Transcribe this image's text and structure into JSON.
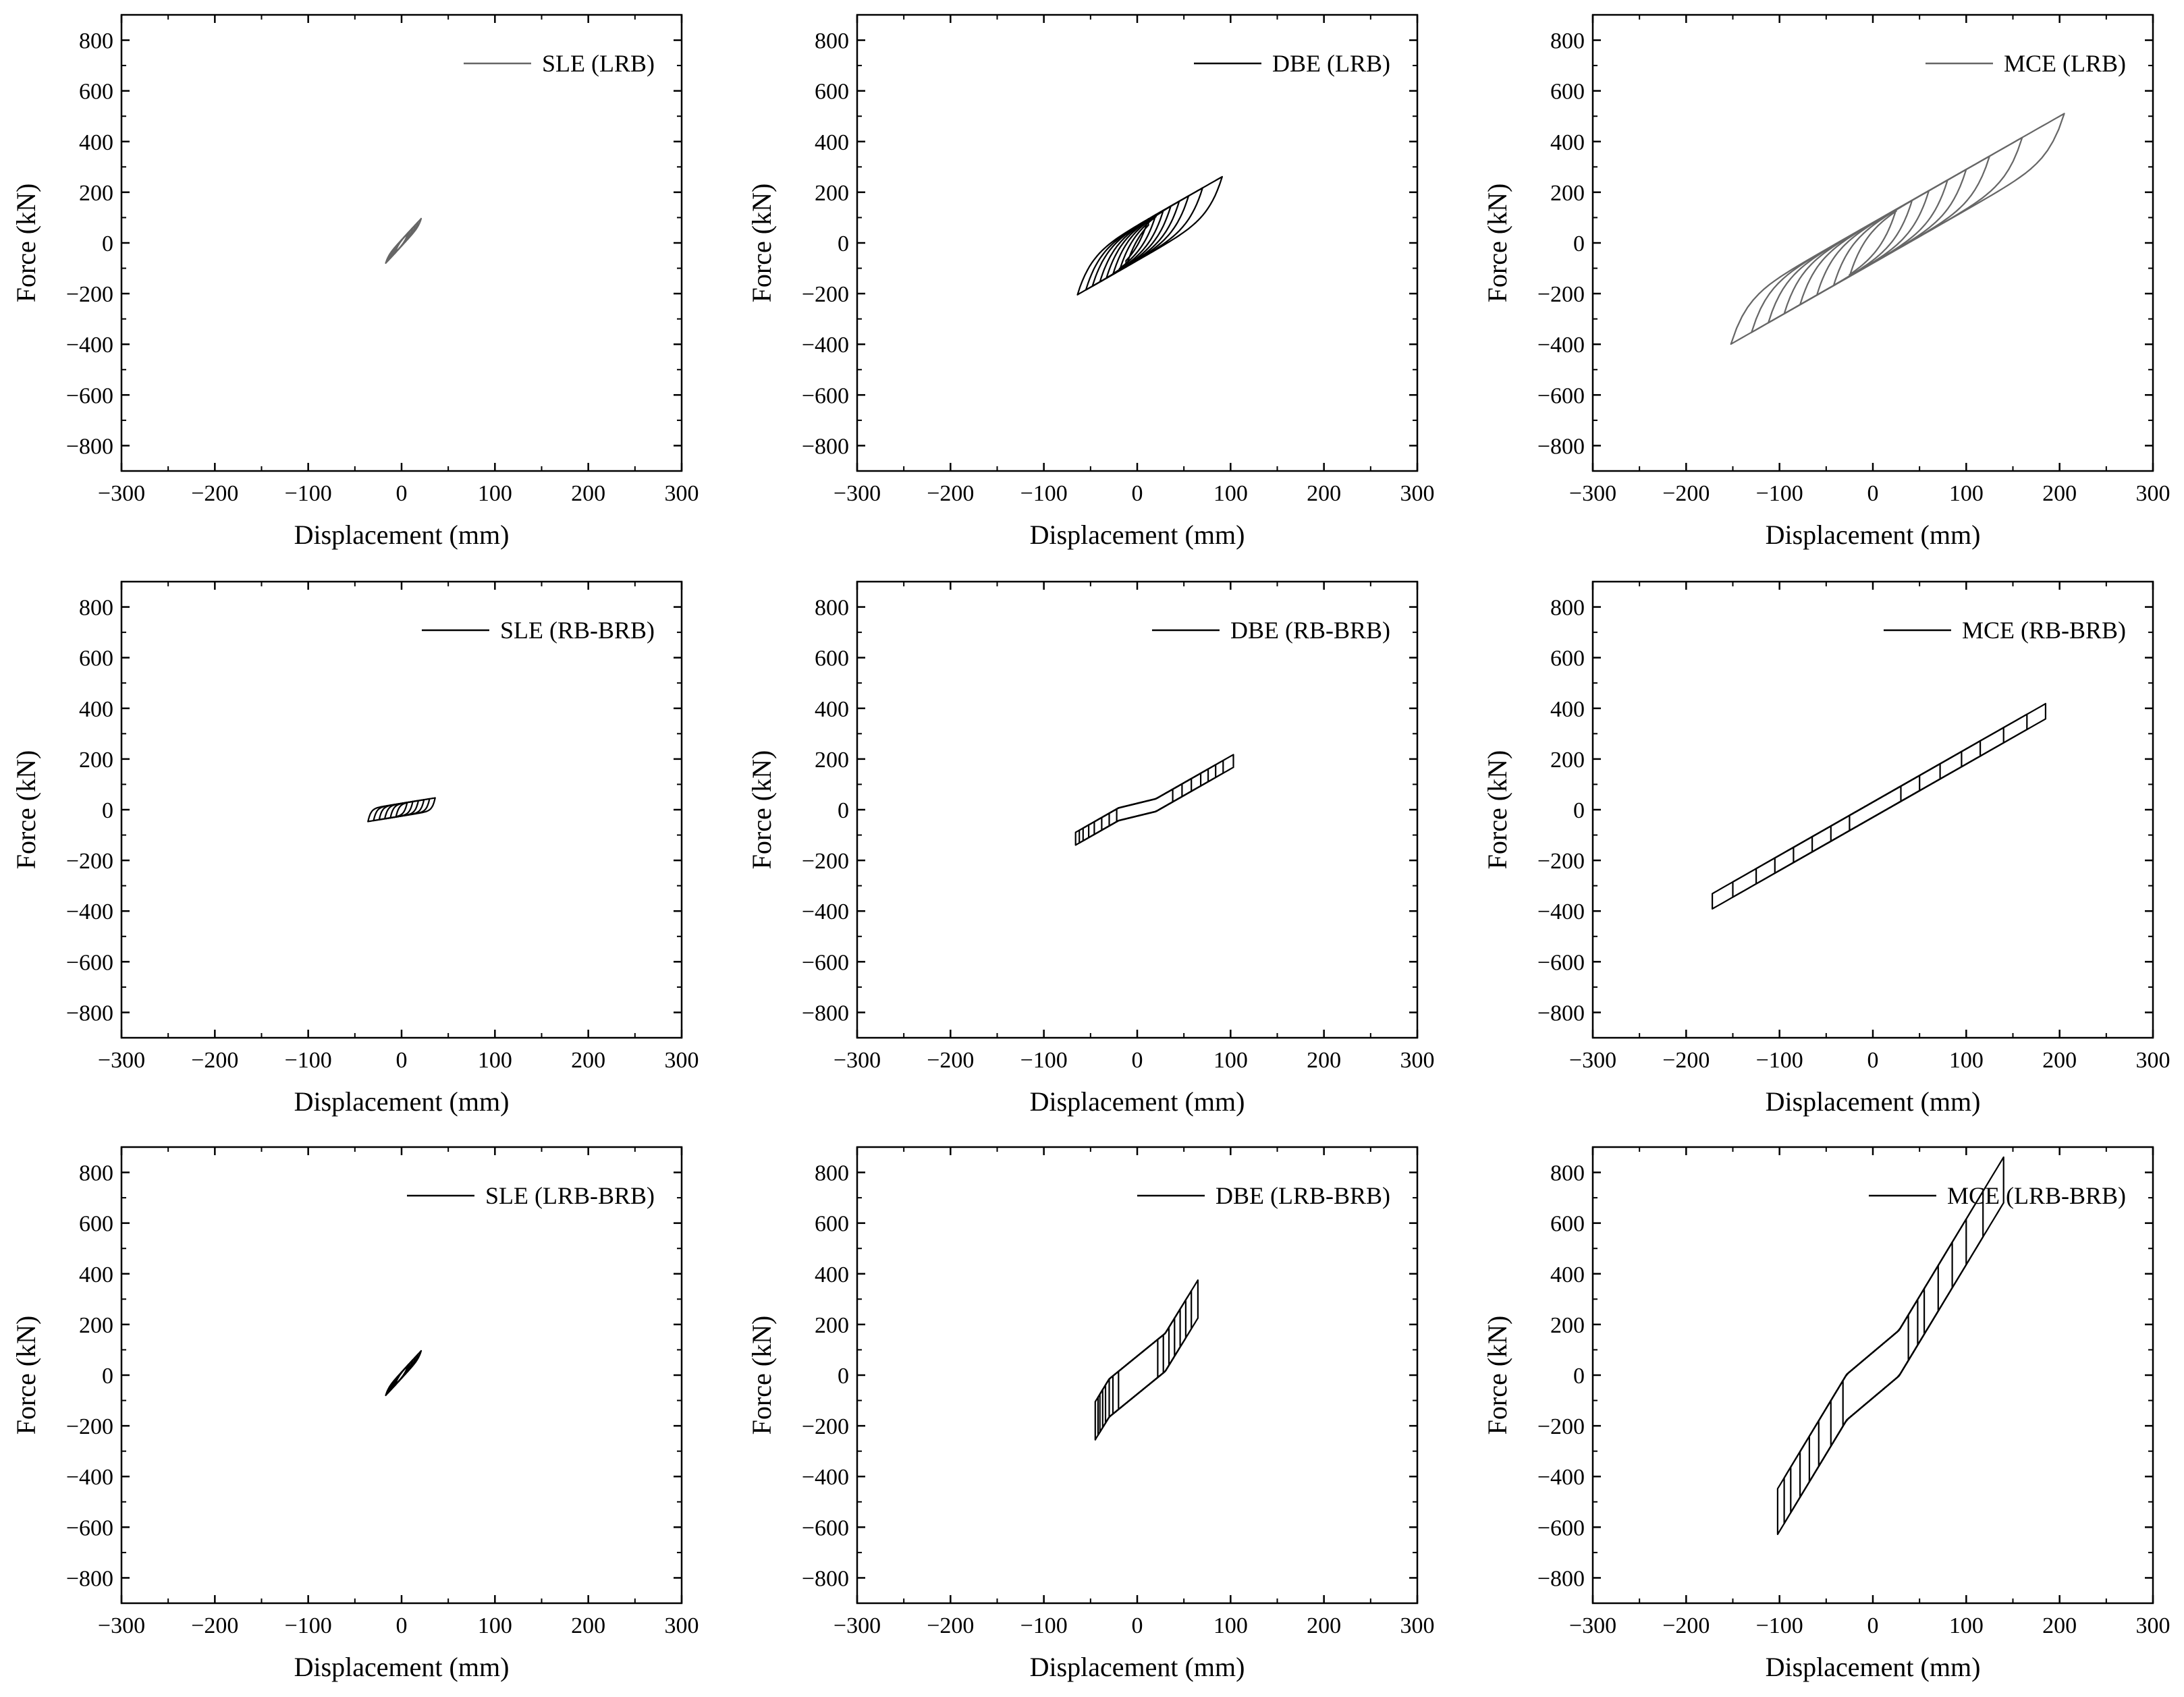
{
  "chart_data": [
    {
      "id": "sle-lrb",
      "type": "line",
      "xlabel": "Displacement (mm)",
      "ylabel": "Force (kN)",
      "xlim": [
        -300,
        300
      ],
      "ylim": [
        -900,
        900
      ],
      "xticks": [
        -300,
        -200,
        -100,
        0,
        100,
        200,
        300
      ],
      "yticks": [
        -800,
        -600,
        -400,
        -200,
        0,
        200,
        400,
        600,
        800
      ],
      "legend_position": "top-right",
      "series": [
        {
          "name": "SLE (LRB)",
          "model": "hysteresis",
          "color": "#666666",
          "loops": [
            {
              "dmin": -17,
              "dmax": 21,
              "kp": 4.0,
              "q": 12,
              "knee": 3
            },
            {
              "dmin": -15,
              "dmax": 18,
              "kp": 4.0,
              "q": 12,
              "knee": 3
            },
            {
              "dmin": -13,
              "dmax": 15,
              "kp": 4.0,
              "q": 12,
              "knee": 3
            },
            {
              "dmin": -11,
              "dmax": 12,
              "kp": 4.0,
              "q": 12,
              "knee": 3
            },
            {
              "dmin": -9,
              "dmax": 9,
              "kp": 4.0,
              "q": 12,
              "knee": 3
            },
            {
              "dmin": -7,
              "dmax": 7,
              "kp": 4.0,
              "q": 12,
              "knee": 3
            }
          ]
        }
      ]
    },
    {
      "id": "dbe-lrb",
      "type": "line",
      "xlabel": "Displacement (mm)",
      "ylabel": "Force (kN)",
      "xlim": [
        -300,
        300
      ],
      "ylim": [
        -900,
        900
      ],
      "xticks": [
        -300,
        -200,
        -100,
        0,
        100,
        200,
        300
      ],
      "yticks": [
        -800,
        -600,
        -400,
        -200,
        0,
        200,
        400,
        600,
        800
      ],
      "legend_position": "top-right",
      "series": [
        {
          "name": "DBE (LRB)",
          "model": "hysteresis",
          "color": "#000000",
          "loops": [
            {
              "dmin": -64,
              "dmax": 91,
              "kp": 2.1,
              "q": 70,
              "knee": 14
            },
            {
              "dmin": -55,
              "dmax": 70,
              "kp": 2.1,
              "q": 70,
              "knee": 14
            },
            {
              "dmin": -48,
              "dmax": 55,
              "kp": 2.1,
              "q": 70,
              "knee": 14
            },
            {
              "dmin": -40,
              "dmax": 45,
              "kp": 2.1,
              "q": 70,
              "knee": 14
            },
            {
              "dmin": -33,
              "dmax": 36,
              "kp": 2.1,
              "q": 70,
              "knee": 14
            },
            {
              "dmin": -26,
              "dmax": 28,
              "kp": 2.1,
              "q": 70,
              "knee": 14
            },
            {
              "dmin": -19,
              "dmax": 20,
              "kp": 2.1,
              "q": 70,
              "knee": 14
            },
            {
              "dmin": -12,
              "dmax": 12,
              "kp": 2.1,
              "q": 70,
              "knee": 14
            }
          ]
        }
      ]
    },
    {
      "id": "mce-lrb",
      "type": "line",
      "xlabel": "Displacement (mm)",
      "ylabel": "Force (kN)",
      "xlim": [
        -300,
        300
      ],
      "ylim": [
        -900,
        900
      ],
      "xticks": [
        -300,
        -200,
        -100,
        0,
        100,
        200,
        300
      ],
      "yticks": [
        -800,
        -600,
        -400,
        -200,
        0,
        200,
        400,
        600,
        800
      ],
      "legend_position": "top-right",
      "series": [
        {
          "name": "MCE (LRB)",
          "model": "hysteresis",
          "color": "#666666",
          "loops": [
            {
              "dmin": -152,
              "dmax": 205,
              "kp": 2.1,
              "q": 80,
              "knee": 16
            },
            {
              "dmin": -130,
              "dmax": 160,
              "kp": 2.1,
              "q": 80,
              "knee": 16
            },
            {
              "dmin": -112,
              "dmax": 125,
              "kp": 2.1,
              "q": 80,
              "knee": 16
            },
            {
              "dmin": -95,
              "dmax": 100,
              "kp": 2.1,
              "q": 80,
              "knee": 16
            },
            {
              "dmin": -78,
              "dmax": 80,
              "kp": 2.1,
              "q": 80,
              "knee": 16
            },
            {
              "dmin": -60,
              "dmax": 60,
              "kp": 2.1,
              "q": 80,
              "knee": 16
            },
            {
              "dmin": -42,
              "dmax": 42,
              "kp": 2.1,
              "q": 80,
              "knee": 16
            },
            {
              "dmin": -25,
              "dmax": 25,
              "kp": 2.1,
              "q": 80,
              "knee": 16
            }
          ]
        }
      ]
    },
    {
      "id": "sle-rb-brb",
      "type": "line",
      "xlabel": "Displacement (mm)",
      "ylabel": "Force (kN)",
      "xlim": [
        -300,
        300
      ],
      "ylim": [
        -900,
        900
      ],
      "xticks": [
        -300,
        -200,
        -100,
        0,
        100,
        200,
        300
      ],
      "yticks": [
        -800,
        -600,
        -400,
        -200,
        0,
        200,
        400,
        600,
        800
      ],
      "legend_position": "top-right",
      "series": [
        {
          "name": "SLE (RB-BRB)",
          "model": "hysteresis",
          "color": "#000000",
          "loops": [
            {
              "dmin": -36,
              "dmax": 36,
              "kp": 0.6,
              "q": 25,
              "knee": 3
            },
            {
              "dmin": -30,
              "dmax": 30,
              "kp": 0.6,
              "q": 25,
              "knee": 3
            },
            {
              "dmin": -24,
              "dmax": 24,
              "kp": 0.6,
              "q": 25,
              "knee": 3
            },
            {
              "dmin": -18,
              "dmax": 18,
              "kp": 0.6,
              "q": 25,
              "knee": 3
            },
            {
              "dmin": -12,
              "dmax": 12,
              "kp": 0.6,
              "q": 25,
              "knee": 3
            },
            {
              "dmin": -6,
              "dmax": 6,
              "kp": 0.6,
              "q": 25,
              "knee": 3
            }
          ]
        }
      ]
    },
    {
      "id": "dbe-rb-brb",
      "type": "line",
      "xlabel": "Displacement (mm)",
      "ylabel": "Force (kN)",
      "xlim": [
        -300,
        300
      ],
      "ylim": [
        -900,
        900
      ],
      "xticks": [
        -300,
        -200,
        -100,
        0,
        100,
        200,
        300
      ],
      "yticks": [
        -800,
        -600,
        -400,
        -200,
        0,
        200,
        400,
        600,
        800
      ],
      "legend_position": "top-right",
      "series": [
        {
          "name": "DBE (RB-BRB)",
          "model": "gap",
          "color": "#000000",
          "loops": [
            {
              "dmin": -66,
              "dmax": 103,
              "gap": 20,
              "k": 0.9,
              "q": 25,
              "tail": 1.2
            },
            {
              "dmin": -62,
              "dmax": 92,
              "gap": 20,
              "k": 0.9,
              "q": 25,
              "tail": 1.2
            },
            {
              "dmin": -58,
              "dmax": 84,
              "gap": 20,
              "k": 0.9,
              "q": 25,
              "tail": 1.2
            },
            {
              "dmin": -52,
              "dmax": 76,
              "gap": 20,
              "k": 0.9,
              "q": 25,
              "tail": 1.2
            },
            {
              "dmin": -46,
              "dmax": 68,
              "gap": 20,
              "k": 0.9,
              "q": 25,
              "tail": 1.2
            },
            {
              "dmin": -38,
              "dmax": 58,
              "gap": 20,
              "k": 0.9,
              "q": 25,
              "tail": 1.2
            },
            {
              "dmin": -30,
              "dmax": 48,
              "gap": 20,
              "k": 0.9,
              "q": 25,
              "tail": 1.2
            },
            {
              "dmin": -22,
              "dmax": 38,
              "gap": 20,
              "k": 0.9,
              "q": 25,
              "tail": 1.2
            }
          ]
        }
      ]
    },
    {
      "id": "mce-rb-brb",
      "type": "line",
      "xlabel": "Displacement (mm)",
      "ylabel": "Force (kN)",
      "xlim": [
        -300,
        300
      ],
      "ylim": [
        -900,
        900
      ],
      "xticks": [
        -300,
        -200,
        -100,
        0,
        100,
        200,
        300
      ],
      "yticks": [
        -800,
        -600,
        -400,
        -200,
        0,
        200,
        400,
        600,
        800
      ],
      "legend_position": "top-right",
      "series": [
        {
          "name": "MCE (RB-BRB)",
          "model": "gap",
          "color": "#000000",
          "loops": [
            {
              "dmin": -172,
              "dmax": 185,
              "gap": 0,
              "k": 0.9,
              "q": 30,
              "tail": 1.2
            },
            {
              "dmin": -150,
              "dmax": 165,
              "gap": 0,
              "k": 0.9,
              "q": 30,
              "tail": 1.2
            },
            {
              "dmin": -125,
              "dmax": 140,
              "gap": 0,
              "k": 0.9,
              "q": 30,
              "tail": 1.2
            },
            {
              "dmin": -105,
              "dmax": 115,
              "gap": 0,
              "k": 0.9,
              "q": 30,
              "tail": 1.2
            },
            {
              "dmin": -85,
              "dmax": 95,
              "gap": 0,
              "k": 0.9,
              "q": 30,
              "tail": 1.2
            },
            {
              "dmin": -65,
              "dmax": 72,
              "gap": 0,
              "k": 0.9,
              "q": 30,
              "tail": 1.2
            },
            {
              "dmin": -45,
              "dmax": 50,
              "gap": 0,
              "k": 0.9,
              "q": 30,
              "tail": 1.2
            },
            {
              "dmin": -25,
              "dmax": 30,
              "gap": 0,
              "k": 0.9,
              "q": 30,
              "tail": 1.2
            }
          ]
        }
      ]
    },
    {
      "id": "sle-lrb-brb",
      "type": "line",
      "xlabel": "Displacement (mm)",
      "ylabel": "Force (kN)",
      "xlim": [
        -300,
        300
      ],
      "ylim": [
        -900,
        900
      ],
      "xticks": [
        -300,
        -200,
        -100,
        0,
        100,
        200,
        300
      ],
      "yticks": [
        -800,
        -600,
        -400,
        -200,
        0,
        200,
        400,
        600,
        800
      ],
      "legend_position": "top-right",
      "series": [
        {
          "name": "SLE (LRB-BRB)",
          "model": "hysteresis",
          "color": "#000000",
          "loops": [
            {
              "dmin": -17,
              "dmax": 21,
              "kp": 4.0,
              "q": 12,
              "knee": 3
            },
            {
              "dmin": -15,
              "dmax": 18,
              "kp": 4.0,
              "q": 12,
              "knee": 3
            },
            {
              "dmin": -13,
              "dmax": 15,
              "kp": 4.0,
              "q": 12,
              "knee": 3
            },
            {
              "dmin": -11,
              "dmax": 12,
              "kp": 4.0,
              "q": 12,
              "knee": 3
            },
            {
              "dmin": -9,
              "dmax": 9,
              "kp": 4.0,
              "q": 12,
              "knee": 3
            },
            {
              "dmin": -7,
              "dmax": 7,
              "kp": 4.0,
              "q": 12,
              "knee": 3
            }
          ]
        }
      ]
    },
    {
      "id": "dbe-lrb-brb",
      "type": "line",
      "xlabel": "Displacement (mm)",
      "ylabel": "Force (kN)",
      "xlim": [
        -300,
        300
      ],
      "ylim": [
        -900,
        900
      ],
      "xticks": [
        -300,
        -200,
        -100,
        0,
        100,
        200,
        300
      ],
      "yticks": [
        -800,
        -600,
        -400,
        -200,
        0,
        200,
        400,
        600,
        800
      ],
      "legend_position": "top-right",
      "series": [
        {
          "name": "DBE (LRB-BRB)",
          "model": "gap",
          "color": "#000000",
          "loops": [
            {
              "dmin": -45,
              "dmax": 65,
              "gap": 30,
              "k": 3.0,
              "q": 75,
              "tail": 3.0
            },
            {
              "dmin": -42,
              "dmax": 58,
              "gap": 30,
              "k": 3.0,
              "q": 75,
              "tail": 3.0
            },
            {
              "dmin": -40,
              "dmax": 52,
              "gap": 30,
              "k": 3.0,
              "q": 75,
              "tail": 3.0
            },
            {
              "dmin": -37,
              "dmax": 46,
              "gap": 30,
              "k": 3.0,
              "q": 75,
              "tail": 3.0
            },
            {
              "dmin": -34,
              "dmax": 40,
              "gap": 30,
              "k": 3.0,
              "q": 75,
              "tail": 3.0
            },
            {
              "dmin": -30,
              "dmax": 34,
              "gap": 30,
              "k": 3.0,
              "q": 75,
              "tail": 3.0
            },
            {
              "dmin": -26,
              "dmax": 28,
              "gap": 30,
              "k": 3.0,
              "q": 75,
              "tail": 3.0
            },
            {
              "dmin": -20,
              "dmax": 22,
              "gap": 30,
              "k": 3.0,
              "q": 75,
              "tail": 3.0
            }
          ]
        }
      ]
    },
    {
      "id": "mce-lrb-brb",
      "type": "line",
      "xlabel": "Displacement (mm)",
      "ylabel": "Force (kN)",
      "xlim": [
        -300,
        300
      ],
      "ylim": [
        -900,
        900
      ],
      "xticks": [
        -300,
        -200,
        -100,
        0,
        100,
        200,
        300
      ],
      "yticks": [
        -800,
        -600,
        -400,
        -200,
        0,
        200,
        400,
        600,
        800
      ],
      "legend_position": "top-right",
      "series": [
        {
          "name": "MCE (LRB-BRB)",
          "model": "gap",
          "color": "#000000",
          "loops": [
            {
              "dmin": -102,
              "dmax": 140,
              "gap": 28,
              "k": 3.1,
              "q": 90,
              "tail": 3.0
            },
            {
              "dmin": -95,
              "dmax": 118,
              "gap": 28,
              "k": 3.1,
              "q": 90,
              "tail": 3.0
            },
            {
              "dmin": -88,
              "dmax": 100,
              "gap": 28,
              "k": 3.1,
              "q": 90,
              "tail": 3.0
            },
            {
              "dmin": -78,
              "dmax": 85,
              "gap": 28,
              "k": 3.1,
              "q": 90,
              "tail": 3.0
            },
            {
              "dmin": -68,
              "dmax": 70,
              "gap": 28,
              "k": 3.1,
              "q": 90,
              "tail": 3.0
            },
            {
              "dmin": -58,
              "dmax": 55,
              "gap": 28,
              "k": 3.1,
              "q": 90,
              "tail": 3.0
            },
            {
              "dmin": -45,
              "dmax": 48,
              "gap": 28,
              "k": 3.1,
              "q": 90,
              "tail": 3.0
            },
            {
              "dmin": -32,
              "dmax": 38,
              "gap": 28,
              "k": 3.1,
              "q": 90,
              "tail": 3.0
            }
          ]
        }
      ]
    }
  ]
}
